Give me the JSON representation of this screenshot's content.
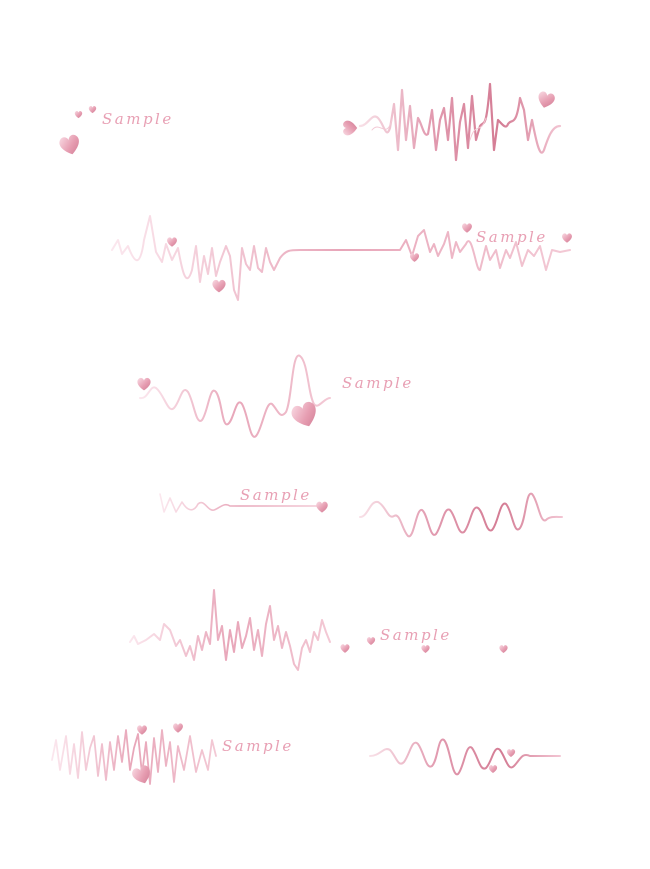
{
  "background": "#ffffff",
  "colors": {
    "light": "#f6d3dd",
    "mid": "#e7a2b6",
    "deep": "#d47c94",
    "baseline": "#e9aabb"
  },
  "dividers": [
    {
      "label": "Sample",
      "heart_icons": [
        "heart-icon",
        "heart-icon",
        "heart-icon",
        "heart-icon",
        "heart-icon"
      ]
    },
    {
      "label": "Sample",
      "heart_icons": [
        "heart-icon",
        "heart-icon",
        "heart-icon",
        "heart-icon",
        "heart-icon"
      ]
    },
    {
      "label": "Sample",
      "heart_icons": [
        "heart-icon",
        "heart-icon"
      ]
    },
    {
      "label": "Sample",
      "heart_icons": [
        "heart-icon"
      ]
    },
    {
      "label": "Sample",
      "heart_icons": [
        "heart-icon",
        "heart-icon",
        "heart-icon",
        "heart-icon"
      ]
    },
    {
      "label": "Sample",
      "heart_icons": [
        "heart-icon",
        "heart-icon",
        "heart-icon",
        "heart-icon",
        "heart-icon"
      ]
    }
  ]
}
